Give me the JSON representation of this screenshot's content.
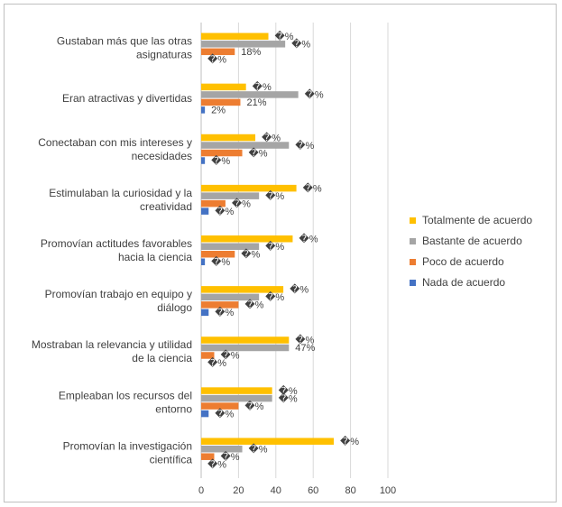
{
  "chart_data": {
    "type": "bar",
    "orientation": "horizontal",
    "categories": [
      [
        "Gustaban más que las otras",
        "asignaturas"
      ],
      [
        "Eran atractivas y divertidas"
      ],
      [
        "Conectaban con mis intereses y",
        "necesidades"
      ],
      [
        "Estimulaban la curiosidad y la",
        "creatividad"
      ],
      [
        "Promovían actitudes favorables",
        "hacia la ciencia"
      ],
      [
        "Promovían trabajo en equipo y",
        "diálogo"
      ],
      [
        "Mostraban la relevancia y utilidad",
        "de la ciencia"
      ],
      [
        "Empleaban los recursos del",
        "entorno"
      ],
      [
        "Promovían la investigación",
        "científica"
      ]
    ],
    "series": [
      {
        "name": "Totalmente de acuerdo",
        "color": "#FFC000",
        "values": [
          36,
          24,
          29,
          51,
          49,
          44,
          47,
          38,
          71
        ],
        "labels": [
          "�%",
          "�%",
          "�%",
          "�%",
          "�%",
          "�%",
          "�%",
          "�%",
          "�%"
        ]
      },
      {
        "name": "Bastante de acuerdo",
        "color": "#A5A5A5",
        "values": [
          45,
          52,
          47,
          31,
          31,
          31,
          47,
          38,
          22
        ],
        "labels": [
          "�%",
          "�%",
          "�%",
          "�%",
          "�%",
          "�%",
          "47%",
          "�%",
          "�%"
        ]
      },
      {
        "name": "Poco de acuerdo",
        "color": "#ED7D31",
        "values": [
          18,
          21,
          22,
          13,
          18,
          20,
          7,
          20,
          7
        ],
        "labels": [
          "18%",
          "21%",
          "�%",
          "�%",
          "�%",
          "�%",
          "�%",
          "�%",
          "�%"
        ]
      },
      {
        "name": "Nada de acuerdo",
        "color": "#4472C4",
        "values": [
          0,
          2,
          2,
          4,
          2,
          4,
          0,
          4,
          0
        ],
        "labels": [
          "�%",
          "2%",
          "�%",
          "�%",
          "�%",
          "�%",
          "�%",
          "�%",
          "�%"
        ]
      }
    ],
    "xlim": [
      0,
      100
    ],
    "xticks": [
      0,
      20,
      40,
      60,
      80,
      100
    ],
    "grid": true,
    "legend_position": "right",
    "legend_order": [
      0,
      1,
      2,
      3
    ]
  }
}
